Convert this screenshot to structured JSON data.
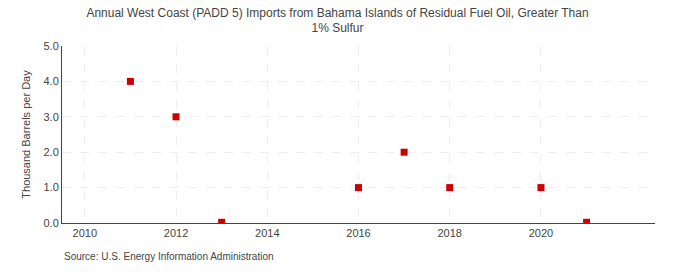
{
  "chart_data": {
    "type": "scatter",
    "title": "Annual West Coast (PADD 5) Imports from Bahama Islands of Residual Fuel Oil, Greater Than\n1% Sulfur",
    "ylabel": "Thousand Barrels per Day",
    "annotations": [
      "Source: U.S. Energy Information Administration"
    ],
    "x": [
      2011,
      2012,
      2013,
      2016,
      2017,
      2018,
      2020,
      2021
    ],
    "values": [
      4.0,
      3.0,
      0.02,
      1.0,
      2.0,
      1.0,
      1.0,
      0.02
    ],
    "color": "#cc0000",
    "marker": "square",
    "xlim": [
      2009.5,
      2022.5
    ],
    "ylim": [
      0.0,
      5.0
    ],
    "xticks": [
      2010,
      2012,
      2014,
      2016,
      2018,
      2020
    ],
    "yticks": [
      {
        "value": 0.0,
        "label": "0.0"
      },
      {
        "value": 1.0,
        "label": "1.0"
      },
      {
        "value": 2.0,
        "label": "2.0"
      },
      {
        "value": 3.0,
        "label": "3.0"
      },
      {
        "value": 4.0,
        "label": "4.0"
      },
      {
        "value": 5.0,
        "label": "5.0"
      }
    ],
    "grid": true
  }
}
